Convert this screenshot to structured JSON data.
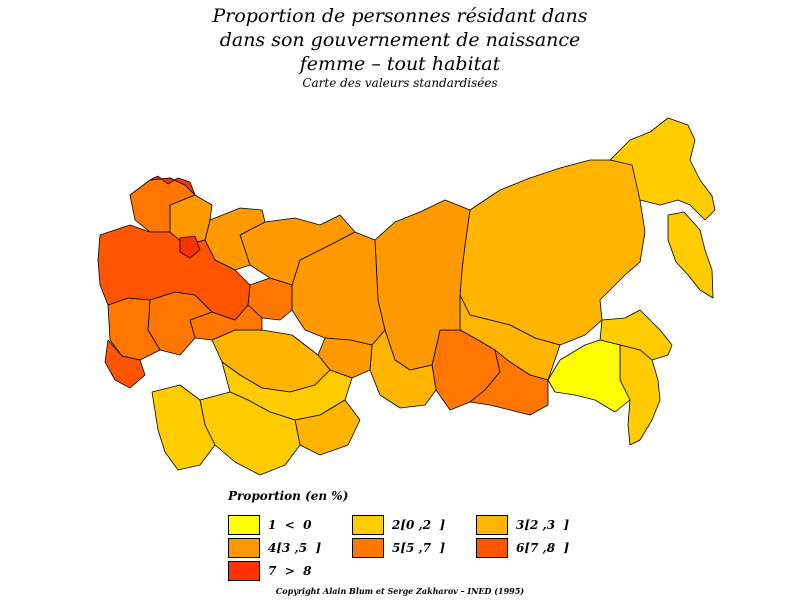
{
  "title": {
    "line1": "Proportion de personnes résidant dans",
    "line2": "dans son gouvernement de naissance",
    "line3": "femme  –  tout habitat",
    "subtitle": "Carte des valeurs standardisées"
  },
  "legend": {
    "title": "Proportion  (en %)",
    "classes": [
      {
        "label": "1  <  0",
        "color": "#ffff00"
      },
      {
        "label": "2[0 ,2  ]",
        "color": "#ffcc00"
      },
      {
        "label": "3[2 ,3  ]",
        "color": "#ffb400"
      },
      {
        "label": "4[3 ,5  ]",
        "color": "#ff9900"
      },
      {
        "label": "5[5 ,7  ]",
        "color": "#ff7700"
      },
      {
        "label": "6[7 ,8  ]",
        "color": "#ff5500"
      },
      {
        "label": "7  >  8",
        "color": "#ff3300"
      }
    ]
  },
  "copyright": "Copyright Alain Blum et Serge Zakharov  –  INED (1995)",
  "map_regions": {
    "far_east_north": 2,
    "kamchatka": 2,
    "yakutia": 3,
    "east_siberia": 3,
    "krasnoyarsk": 4,
    "west_siberia": 4,
    "irkutsk_baikal": 5,
    "buryatia": 5,
    "amur": 1,
    "khabarovsk": 2,
    "primorye": 2,
    "ural_north": 4,
    "perm": 5,
    "komi": 4,
    "arkhangelsk": 4,
    "karelia_kola": 5,
    "murmansk_top": 7,
    "central_russia": 6,
    "moscow": 7,
    "volga": 5,
    "south_russia": 5,
    "caucasus": 6,
    "kazakhstan_north": 3,
    "kazakhstan_south": 2,
    "altai": 3,
    "central_asia": 2,
    "turkmenistan": 2
  }
}
